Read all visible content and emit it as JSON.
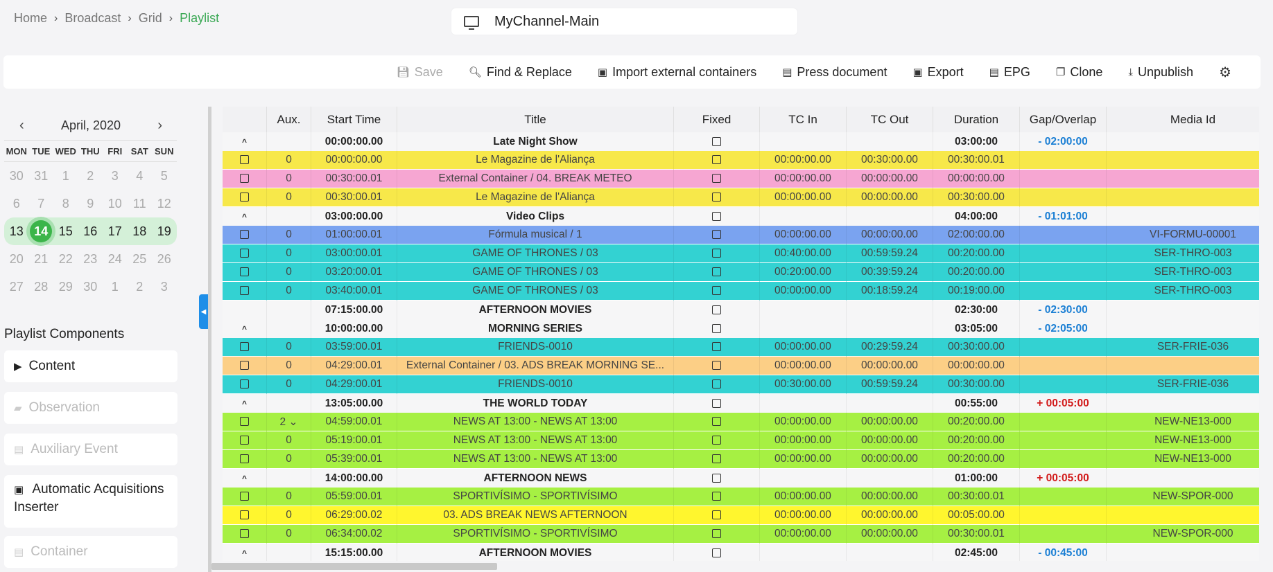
{
  "breadcrumb": {
    "items": [
      "Home",
      "Broadcast",
      "Grid",
      "Playlist"
    ],
    "separator": "›"
  },
  "channel": {
    "name": "MyChannel-Main"
  },
  "toolbar": {
    "save": "Save",
    "find_replace": "Find & Replace",
    "import_external": "Import external containers",
    "press_document": "Press document",
    "export": "Export",
    "epg": "EPG",
    "clone": "Clone",
    "unpublish": "Unpublish"
  },
  "calendar": {
    "month_label": "April, 2020",
    "prev": "‹",
    "next": "›",
    "weekdays": [
      "MON",
      "TUE",
      "WED",
      "THU",
      "FRI",
      "SAT",
      "SUN"
    ],
    "weeks": [
      [
        "30",
        "31",
        "1",
        "2",
        "3",
        "4",
        "5"
      ],
      [
        "6",
        "7",
        "8",
        "9",
        "10",
        "11",
        "12"
      ],
      [
        "13",
        "14",
        "15",
        "16",
        "17",
        "18",
        "19"
      ],
      [
        "20",
        "21",
        "22",
        "23",
        "24",
        "25",
        "26"
      ],
      [
        "27",
        "28",
        "29",
        "30",
        "1",
        "2",
        "3"
      ]
    ],
    "current_week_index": 2,
    "selected_day": "14"
  },
  "components": {
    "title": "Playlist Components",
    "content": "Content",
    "observation": "Observation",
    "auxiliary_event": "Auxiliary Event",
    "auto_acq_line1": "Automatic Acquisitions",
    "auto_acq_line2": "Inserter",
    "container": "Container"
  },
  "grid": {
    "columns": [
      "",
      "Aux.",
      "Start Time",
      "Title",
      "Fixed",
      "TC In",
      "TC Out",
      "Duration",
      "Gap/Overlap",
      "Media Id"
    ],
    "colors": {
      "yellow": "#f7e84a",
      "pink": "#f6a6d2",
      "blue": "#7aa3f0",
      "cyan": "#33d2d2",
      "orange": "#fccf86",
      "lime": "#a6f043",
      "brightyellow": "#fff62e"
    },
    "rows": [
      {
        "kind": "grp",
        "chevron": "^",
        "start": "00:00:00.00",
        "title": "Late Night Show",
        "duration": "03:00:00",
        "gap": "- 02:00:00",
        "gap_type": "neg"
      },
      {
        "kind": "item",
        "color": "yellow",
        "aux": "0",
        "start": "00:00:00.00",
        "title": "Le Magazine de l'Aliança",
        "tcin": "00:00:00.00",
        "tcout": "00:30:00.00",
        "duration": "00:30:00.01",
        "media": ""
      },
      {
        "kind": "item",
        "color": "pink",
        "aux": "0",
        "start": "00:30:00.01",
        "title": "External Container / 04. BREAK METEO",
        "tcin": "00:00:00.00",
        "tcout": "00:00:00.00",
        "duration": "00:00:00.00",
        "media": ""
      },
      {
        "kind": "item",
        "color": "yellow",
        "aux": "0",
        "start": "00:30:00.01",
        "title": "Le Magazine de l'Aliança",
        "tcin": "00:00:00.00",
        "tcout": "00:00:00.00",
        "duration": "00:30:00.00",
        "media": ""
      },
      {
        "kind": "grp",
        "chevron": "^",
        "start": "03:00:00.00",
        "title": "Video Clips",
        "duration": "04:00:00",
        "gap": "- 01:01:00",
        "gap_type": "neg"
      },
      {
        "kind": "item",
        "color": "blue",
        "aux": "0",
        "start": "01:00:00.01",
        "title": "Fórmula musical / 1",
        "tcin": "00:00:00.00",
        "tcout": "00:00:00.00",
        "duration": "02:00:00.00",
        "media": "VI-FORMU-00001"
      },
      {
        "kind": "item",
        "color": "cyan",
        "aux": "0",
        "start": "03:00:00.01",
        "title": "GAME OF THRONES / 03",
        "tcin": "00:40:00.00",
        "tcout": "00:59:59.24",
        "duration": "00:20:00.00",
        "media": "SER-THRO-003"
      },
      {
        "kind": "item",
        "color": "cyan",
        "aux": "0",
        "start": "03:20:00.01",
        "title": "GAME OF THRONES / 03",
        "tcin": "00:20:00.00",
        "tcout": "00:39:59.24",
        "duration": "00:20:00.00",
        "media": "SER-THRO-003"
      },
      {
        "kind": "item",
        "color": "cyan",
        "aux": "0",
        "start": "03:40:00.01",
        "title": "GAME OF THRONES / 03",
        "tcin": "00:00:00.00",
        "tcout": "00:18:59.24",
        "duration": "00:19:00.00",
        "media": "SER-THRO-003"
      },
      {
        "kind": "grp",
        "chevron": "",
        "start": "07:15:00.00",
        "title": "AFTERNOON MOVIES",
        "duration": "02:30:00",
        "gap": "- 02:30:00",
        "gap_type": "neg"
      },
      {
        "kind": "grp",
        "chevron": "^",
        "start": "10:00:00.00",
        "title": "MORNING SERIES",
        "duration": "03:05:00",
        "gap": "- 02:05:00",
        "gap_type": "neg"
      },
      {
        "kind": "item",
        "color": "cyan",
        "aux": "0",
        "start": "03:59:00.01",
        "title": "FRIENDS-0010",
        "tcin": "00:00:00.00",
        "tcout": "00:29:59.24",
        "duration": "00:30:00.00",
        "media": "SER-FRIE-036"
      },
      {
        "kind": "item",
        "color": "orange",
        "aux": "0",
        "start": "04:29:00.01",
        "title": "External Container / 03. ADS BREAK MORNING SE...",
        "tcin": "00:00:00.00",
        "tcout": "00:00:00.00",
        "duration": "00:00:00.00",
        "media": ""
      },
      {
        "kind": "item",
        "color": "cyan",
        "aux": "0",
        "start": "04:29:00.01",
        "title": "FRIENDS-0010",
        "tcin": "00:30:00.00",
        "tcout": "00:59:59.24",
        "duration": "00:30:00.00",
        "media": "SER-FRIE-036"
      },
      {
        "kind": "grp",
        "chevron": "^",
        "start": "13:05:00.00",
        "title": "THE WORLD TODAY",
        "duration": "00:55:00",
        "gap": "+ 00:05:00",
        "gap_type": "pos"
      },
      {
        "kind": "item",
        "color": "lime",
        "aux": "2 ⌄",
        "start": "04:59:00.01",
        "title": "NEWS AT 13:00 - NEWS AT 13:00",
        "tcin": "00:00:00.00",
        "tcout": "00:00:00.00",
        "duration": "00:20:00.00",
        "media": "NEW-NE13-000"
      },
      {
        "kind": "item",
        "color": "lime",
        "aux": "0",
        "start": "05:19:00.01",
        "title": "NEWS AT 13:00 - NEWS AT 13:00",
        "tcin": "00:00:00.00",
        "tcout": "00:00:00.00",
        "duration": "00:20:00.00",
        "media": "NEW-NE13-000"
      },
      {
        "kind": "item",
        "color": "lime",
        "aux": "0",
        "start": "05:39:00.01",
        "title": "NEWS AT 13:00 - NEWS AT 13:00",
        "tcin": "00:00:00.00",
        "tcout": "00:00:00.00",
        "duration": "00:20:00.00",
        "media": "NEW-NE13-000"
      },
      {
        "kind": "grp",
        "chevron": "^",
        "start": "14:00:00.00",
        "title": "AFTERNOON NEWS",
        "duration": "01:00:00",
        "gap": "+ 00:05:00",
        "gap_type": "pos"
      },
      {
        "kind": "item",
        "color": "lime",
        "aux": "0",
        "start": "05:59:00.01",
        "title": "SPORTIVÍSIMO - SPORTIVÍSIMO",
        "tcin": "00:00:00.00",
        "tcout": "00:00:00.00",
        "duration": "00:30:00.01",
        "media": "NEW-SPOR-000"
      },
      {
        "kind": "item",
        "color": "brightyellow",
        "aux": "0",
        "start": "06:29:00.02",
        "title": "03. ADS BREAK NEWS AFTERNOON",
        "tcin": "00:00:00.00",
        "tcout": "00:00:00.00",
        "duration": "00:05:00.00",
        "media": ""
      },
      {
        "kind": "item",
        "color": "lime",
        "aux": "0",
        "start": "06:34:00.02",
        "title": "SPORTIVÍSIMO - SPORTIVÍSIMO",
        "tcin": "00:00:00.00",
        "tcout": "00:00:00.00",
        "duration": "00:30:00.01",
        "media": "NEW-SPOR-000"
      },
      {
        "kind": "grp",
        "chevron": "^",
        "start": "15:15:00.00",
        "title": "AFTERNOON MOVIES",
        "duration": "02:45:00",
        "gap": "- 00:45:00",
        "gap_type": "neg"
      }
    ]
  }
}
